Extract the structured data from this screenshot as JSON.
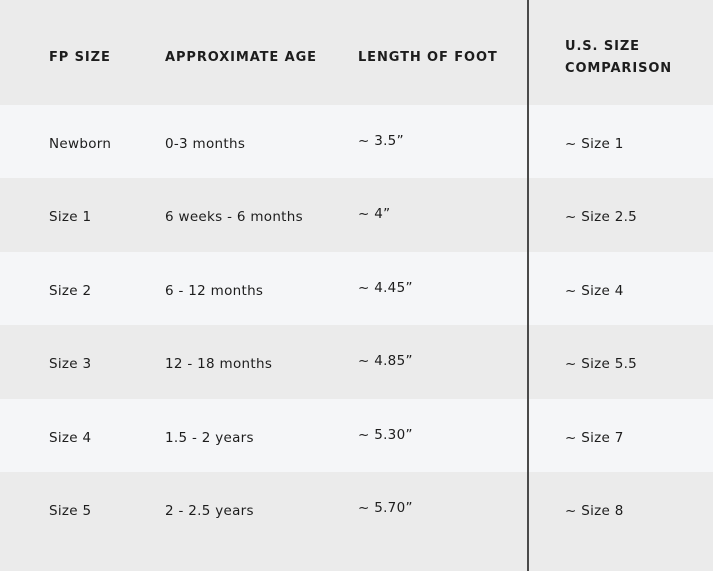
{
  "table": {
    "headers": [
      "FP SIZE",
      "APPROXIMATE AGE",
      "LENGTH OF FOOT",
      "U.S. SIZE",
      "COMPARISON"
    ],
    "rows": [
      [
        "Newborn",
        "0-3 months",
        "~ 3.5”",
        "~ Size 1"
      ],
      [
        "Size 1",
        "6 weeks - 6 months",
        "~ 4”",
        "~ Size 2.5"
      ],
      [
        "Size 2",
        "6 - 12 months",
        "~ 4.45”",
        "~ Size 4"
      ],
      [
        "Size 3",
        "12 - 18 months",
        "~ 4.85”",
        "~ Size 5.5"
      ],
      [
        "Size 4",
        "1.5 - 2 years",
        "~ 5.30”",
        "~ Size 7"
      ],
      [
        "Size 5",
        "2 - 2.5 years",
        "~ 5.70”",
        "~ Size 8"
      ]
    ]
  },
  "colors": {
    "header_bg": "#ebebeb",
    "row_light": "#f5f6f8",
    "row_dark": "#ebebeb",
    "divider": "#4a4a4a"
  }
}
